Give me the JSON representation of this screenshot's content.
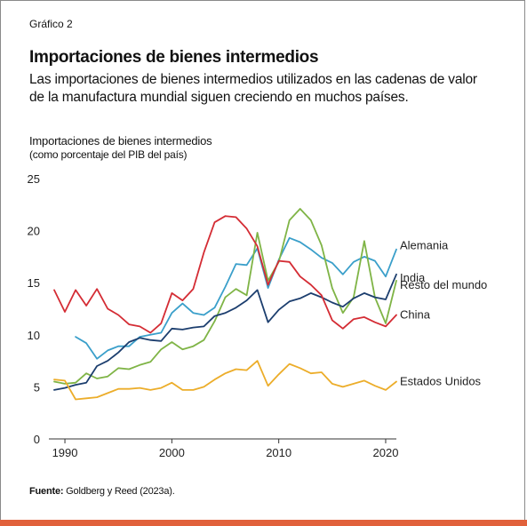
{
  "header": {
    "chart_label": "Gráfico 2",
    "title": "Importaciones de bienes intermedios",
    "subtitle": "Las importaciones de bienes intermedios utilizados en las cadenas de valor de la manufactura mundial siguen creciendo en muchos países."
  },
  "footer": {
    "source_label": "Fuente:",
    "source_text": " Goldberg y Reed (2023a)."
  },
  "chart_data": {
    "type": "line",
    "ylabel": "Importaciones de bienes intermedios",
    "ylabel_note": "(como porcentaje del PIB del país)",
    "xlabel": "",
    "ylim": [
      0,
      25
    ],
    "yticks": [
      0,
      5,
      10,
      15,
      20,
      25
    ],
    "xlim": [
      1988.5,
      2021
    ],
    "xticks": [
      1990,
      2000,
      2010,
      2020
    ],
    "grid": false,
    "legend": "end-of-line labels",
    "series": [
      {
        "name": "Alemania",
        "color": "#3a9fca",
        "x": [
          1991,
          1992,
          1993,
          1994,
          1995,
          1996,
          1997,
          1998,
          1999,
          2000,
          2001,
          2002,
          2003,
          2004,
          2005,
          2006,
          2007,
          2008,
          2009,
          2010,
          2011,
          2012,
          2013,
          2014,
          2015,
          2016,
          2017,
          2018,
          2019,
          2020,
          2021
        ],
        "y": [
          9.8,
          9.2,
          7.7,
          8.5,
          8.9,
          8.9,
          9.8,
          10.0,
          10.2,
          12.1,
          13.0,
          12.1,
          11.9,
          12.6,
          14.6,
          16.8,
          16.7,
          18.3,
          14.5,
          17.2,
          19.3,
          18.9,
          18.2,
          17.4,
          16.9,
          15.8,
          17.0,
          17.5,
          17.1,
          15.6,
          18.2
        ]
      },
      {
        "name": "Resto del mundo",
        "color": "#7fb446",
        "x": [
          1989,
          1990,
          1991,
          1992,
          1993,
          1994,
          1995,
          1996,
          1997,
          1998,
          1999,
          2000,
          2001,
          2002,
          2003,
          2004,
          2005,
          2006,
          2007,
          2008,
          2009,
          2010,
          2011,
          2012,
          2013,
          2014,
          2015,
          2016,
          2017,
          2018,
          2019,
          2020,
          2021
        ],
        "y": [
          5.5,
          5.3,
          5.4,
          6.3,
          5.8,
          6.0,
          6.8,
          6.7,
          7.1,
          7.4,
          8.6,
          9.3,
          8.6,
          8.9,
          9.5,
          11.3,
          13.6,
          14.4,
          13.8,
          19.8,
          15.2,
          17.0,
          21.0,
          22.1,
          21.0,
          18.6,
          14.5,
          12.1,
          13.6,
          19.0,
          13.6,
          11.1,
          15.2
        ]
      },
      {
        "name": "India",
        "color": "#1c3e6e",
        "x": [
          1989,
          1990,
          1991,
          1992,
          1993,
          1994,
          1995,
          1996,
          1997,
          1998,
          1999,
          2000,
          2001,
          2002,
          2003,
          2004,
          2005,
          2006,
          2007,
          2008,
          2009,
          2010,
          2011,
          2012,
          2013,
          2014,
          2015,
          2016,
          2017,
          2018,
          2019,
          2020,
          2021
        ],
        "y": [
          4.7,
          4.9,
          5.2,
          5.4,
          7.0,
          7.5,
          8.3,
          9.3,
          9.7,
          9.5,
          9.4,
          10.6,
          10.5,
          10.7,
          10.8,
          11.8,
          12.1,
          12.6,
          13.3,
          14.3,
          11.2,
          12.4,
          13.2,
          13.5,
          14.0,
          13.6,
          13.1,
          12.7,
          13.5,
          14.0,
          13.6,
          13.4,
          15.8
        ]
      },
      {
        "name": "China",
        "color": "#d42c34",
        "x": [
          1989,
          1990,
          1991,
          1992,
          1993,
          1994,
          1995,
          1996,
          1997,
          1998,
          1999,
          2000,
          2001,
          2002,
          2003,
          2004,
          2005,
          2006,
          2007,
          2008,
          2009,
          2010,
          2011,
          2012,
          2013,
          2014,
          2015,
          2016,
          2017,
          2018,
          2019,
          2020,
          2021
        ],
        "y": [
          14.3,
          12.2,
          14.3,
          12.8,
          14.4,
          12.5,
          11.9,
          11.0,
          10.8,
          10.2,
          11.1,
          14.0,
          13.3,
          14.4,
          17.9,
          20.8,
          21.4,
          21.3,
          20.2,
          18.5,
          14.8,
          17.1,
          17.0,
          15.6,
          14.8,
          13.8,
          11.4,
          10.6,
          11.5,
          11.7,
          11.2,
          10.8,
          11.9
        ]
      },
      {
        "name": "Estados Unidos",
        "color": "#ecad2a",
        "x": [
          1989,
          1990,
          1991,
          1992,
          1993,
          1994,
          1995,
          1996,
          1997,
          1998,
          1999,
          2000,
          2001,
          2002,
          2003,
          2004,
          2005,
          2006,
          2007,
          2008,
          2009,
          2010,
          2011,
          2012,
          2013,
          2014,
          2015,
          2016,
          2017,
          2018,
          2019,
          2020,
          2021
        ],
        "y": [
          5.7,
          5.6,
          3.8,
          3.9,
          4.0,
          4.4,
          4.8,
          4.8,
          4.9,
          4.7,
          4.9,
          5.4,
          4.7,
          4.7,
          5.0,
          5.7,
          6.3,
          6.7,
          6.6,
          7.5,
          5.1,
          6.2,
          7.2,
          6.8,
          6.3,
          6.4,
          5.3,
          5.0,
          5.3,
          5.6,
          5.1,
          4.7,
          5.5
        ]
      }
    ]
  }
}
